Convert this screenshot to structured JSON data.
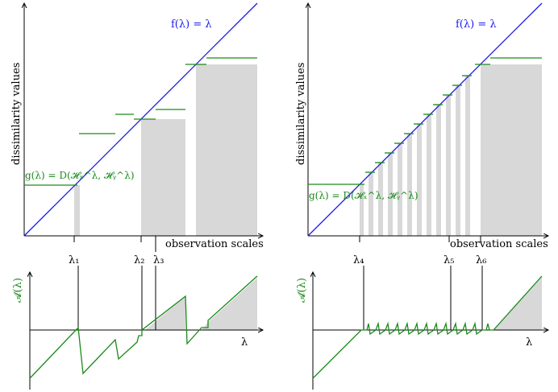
{
  "panels": {
    "left": {
      "ylabel": "dissimilarity values",
      "xlabel": "observation scales",
      "f_label": "f(λ) = λ",
      "g_label": "g(λ) = D(𝓗ₓ^λ, 𝓗ᵧ^λ)",
      "lambda_labels": [
        "λ₁",
        "λ₂",
        "λ₃"
      ],
      "a_label": "𝓐(λ)",
      "lambda_axis": "λ"
    },
    "right": {
      "ylabel": "dissimilarity values",
      "xlabel": "observation scales",
      "f_label": "f(λ) = λ",
      "g_label": "g(λ) = D(𝓗ₓ^λ, 𝓗ᵧ^λ)",
      "lambda_labels": [
        "λ₄",
        "λ₅",
        "λ₆"
      ],
      "a_label": "𝓐(λ)",
      "lambda_axis": "λ"
    }
  },
  "colors": {
    "diagonal": "#1a1aee",
    "green": "#1a8a1a",
    "shade": "#d8d8d8",
    "axis": "#000000"
  }
}
